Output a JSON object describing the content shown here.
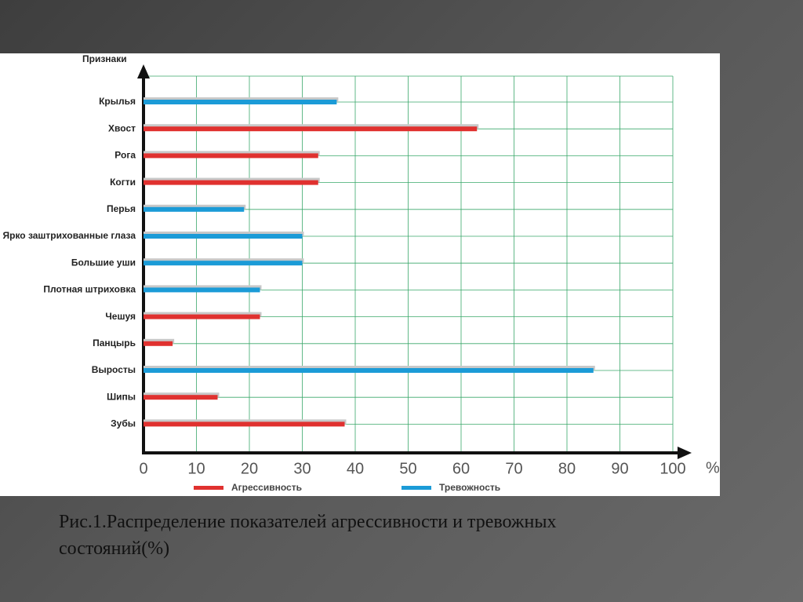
{
  "chart_data": {
    "type": "bar",
    "orientation": "horizontal",
    "ylabel": "Признаки",
    "xlabel": "%",
    "categories": [
      "Крылья",
      "Хвост",
      "Рога",
      "Когти",
      "Перья",
      "Ярко заштрихованные глаза",
      "Большие уши",
      "Плотная штриховка",
      "Чешуя",
      "Панцырь",
      "Выросты",
      "Шипы",
      "Зубы"
    ],
    "series": [
      {
        "name": "Агрессивность",
        "color": "#e0312f",
        "values": [
          null,
          63,
          33,
          33,
          null,
          null,
          null,
          null,
          22,
          5.5,
          null,
          14,
          38
        ]
      },
      {
        "name": "Тревожность",
        "color": "#1b9bd7",
        "values": [
          36.5,
          null,
          null,
          null,
          19,
          30,
          30,
          22,
          null,
          null,
          85,
          null,
          null
        ]
      }
    ],
    "xlim": [
      0,
      100
    ],
    "xticks": [
      0,
      10,
      20,
      30,
      40,
      50,
      60,
      70,
      80,
      90,
      100
    ],
    "grid": true
  },
  "caption": [
    "Рис.1.Распределение показателей агрессивности и тревожных",
    "состояний(%)"
  ]
}
